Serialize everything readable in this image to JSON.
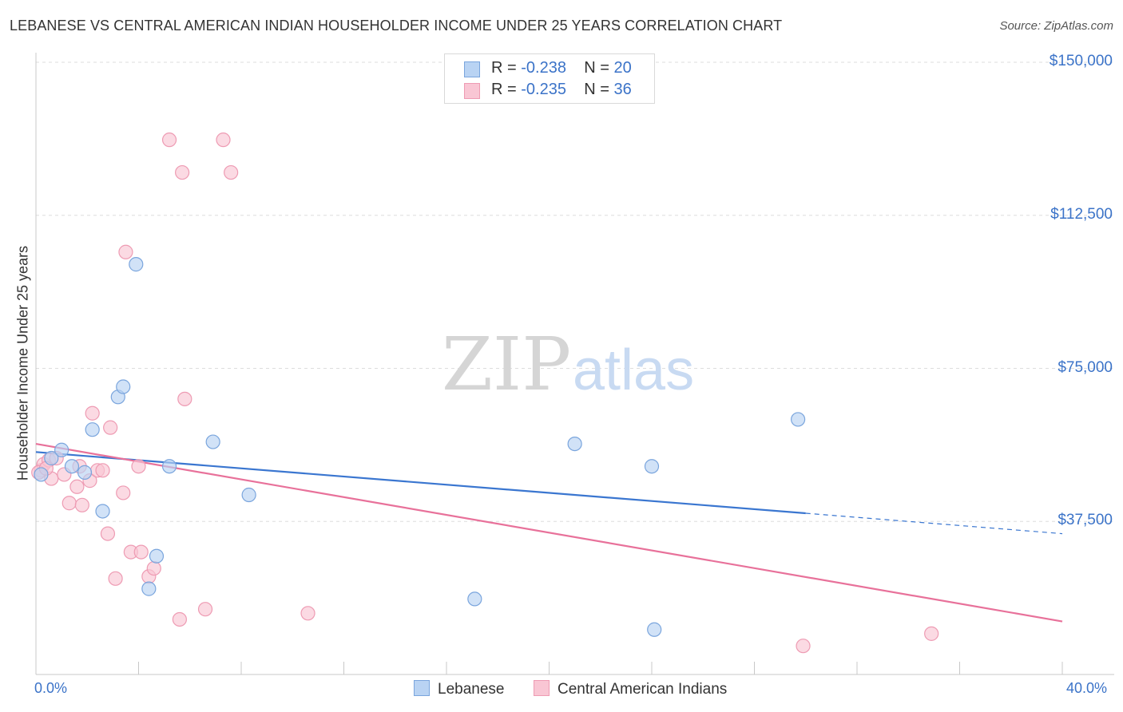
{
  "header": {
    "title": "LEBANESE VS CENTRAL AMERICAN INDIAN HOUSEHOLDER INCOME UNDER 25 YEARS CORRELATION CHART",
    "source": "Source: ZipAtlas.com"
  },
  "watermark": {
    "part1": "ZIP",
    "part2": "atlas"
  },
  "legend": {
    "rows": [
      {
        "r_label": "R = ",
        "r_value": "-0.238",
        "n_label": "N = ",
        "n_value": "20"
      },
      {
        "r_label": "R = ",
        "r_value": "-0.235",
        "n_label": "N = ",
        "n_value": "36"
      }
    ],
    "bottom": [
      "Lebanese",
      "Central American Indians"
    ]
  },
  "colors": {
    "lebanese_fill": "#b9d3f3",
    "lebanese_stroke": "#7aa5dd",
    "lebanese_line": "#3a76d0",
    "cai_fill": "#f9c6d4",
    "cai_stroke": "#ee9bb3",
    "cai_line": "#e8719a",
    "axis_label": "#3b73c8",
    "grid": "#dddddd"
  },
  "chart_data": {
    "type": "scatter",
    "title": "LEBANESE VS CENTRAL AMERICAN INDIAN HOUSEHOLDER INCOME UNDER 25 YEARS CORRELATION CHART",
    "xlabel": "",
    "ylabel": "Householder Income Under 25 years",
    "xlim": [
      0,
      40
    ],
    "ylim": [
      0,
      150000
    ],
    "x_tick_labels": [
      "0.0%",
      "40.0%"
    ],
    "y_ticks": [
      37500,
      75000,
      112500,
      150000
    ],
    "y_tick_labels": [
      "$37,500",
      "$75,000",
      "$112,500",
      "$150,000"
    ],
    "grid": "horizontal dashed",
    "legend_position": "top-center",
    "series": [
      {
        "name": "Lebanese",
        "r": -0.238,
        "n": 20,
        "points": [
          [
            0.2,
            49000
          ],
          [
            0.6,
            53000
          ],
          [
            1.0,
            55000
          ],
          [
            1.4,
            51000
          ],
          [
            1.9,
            49500
          ],
          [
            2.2,
            60000
          ],
          [
            2.6,
            40000
          ],
          [
            3.2,
            68000
          ],
          [
            3.4,
            70500
          ],
          [
            3.9,
            100500
          ],
          [
            4.4,
            21000
          ],
          [
            4.7,
            29000
          ],
          [
            5.2,
            51000
          ],
          [
            6.9,
            57000
          ],
          [
            8.3,
            44000
          ],
          [
            17.1,
            18500
          ],
          [
            21.0,
            56500
          ],
          [
            24.0,
            51000
          ],
          [
            24.1,
            11000
          ],
          [
            29.7,
            62500
          ]
        ],
        "trend": {
          "x": [
            0,
            30
          ],
          "y": [
            54500,
            39500
          ],
          "dashed_extension_to_x": 40,
          "dashed_end_y": 34500
        }
      },
      {
        "name": "Central American Indians",
        "r": -0.235,
        "n": 36,
        "points": [
          [
            0.2,
            50000
          ],
          [
            0.3,
            51500
          ],
          [
            0.5,
            52500
          ],
          [
            0.6,
            48000
          ],
          [
            0.8,
            53000
          ],
          [
            1.1,
            49000
          ],
          [
            1.3,
            42000
          ],
          [
            1.6,
            46000
          ],
          [
            1.7,
            51000
          ],
          [
            1.8,
            41500
          ],
          [
            2.1,
            47500
          ],
          [
            2.2,
            64000
          ],
          [
            2.4,
            50000
          ],
          [
            2.6,
            50000
          ],
          [
            2.8,
            34500
          ],
          [
            2.9,
            60500
          ],
          [
            3.1,
            23500
          ],
          [
            3.4,
            44500
          ],
          [
            3.5,
            103500
          ],
          [
            3.7,
            30000
          ],
          [
            4.0,
            51000
          ],
          [
            4.1,
            30000
          ],
          [
            4.4,
            24000
          ],
          [
            4.6,
            26000
          ],
          [
            5.2,
            131000
          ],
          [
            5.6,
            13500
          ],
          [
            5.7,
            123000
          ],
          [
            5.8,
            67500
          ],
          [
            6.6,
            16000
          ],
          [
            7.3,
            131000
          ],
          [
            7.6,
            123000
          ],
          [
            10.6,
            15000
          ],
          [
            29.9,
            7000
          ],
          [
            34.9,
            10000
          ],
          [
            0.1,
            49500
          ],
          [
            0.4,
            50500
          ]
        ],
        "trend": {
          "x": [
            0,
            40
          ],
          "y": [
            56500,
            13000
          ]
        }
      }
    ]
  }
}
